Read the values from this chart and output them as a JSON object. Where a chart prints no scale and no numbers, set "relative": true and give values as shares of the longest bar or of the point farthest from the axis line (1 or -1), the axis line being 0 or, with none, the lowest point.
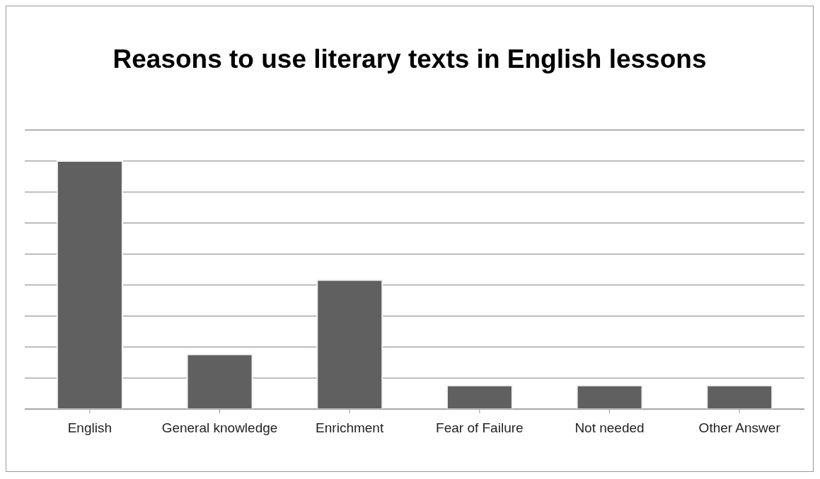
{
  "chart_data": {
    "type": "bar",
    "title": "Reasons to use literary texts in English lessons",
    "categories": [
      "English",
      "General knowledge",
      "Enrichment",
      "Fear of Failure",
      "Not needed",
      "Other Answer"
    ],
    "values": [
      1,
      0.22,
      0.52,
      0.095,
      0.095,
      0.095
    ],
    "color": "#606060",
    "relative": true,
    "grid": "y"
  }
}
